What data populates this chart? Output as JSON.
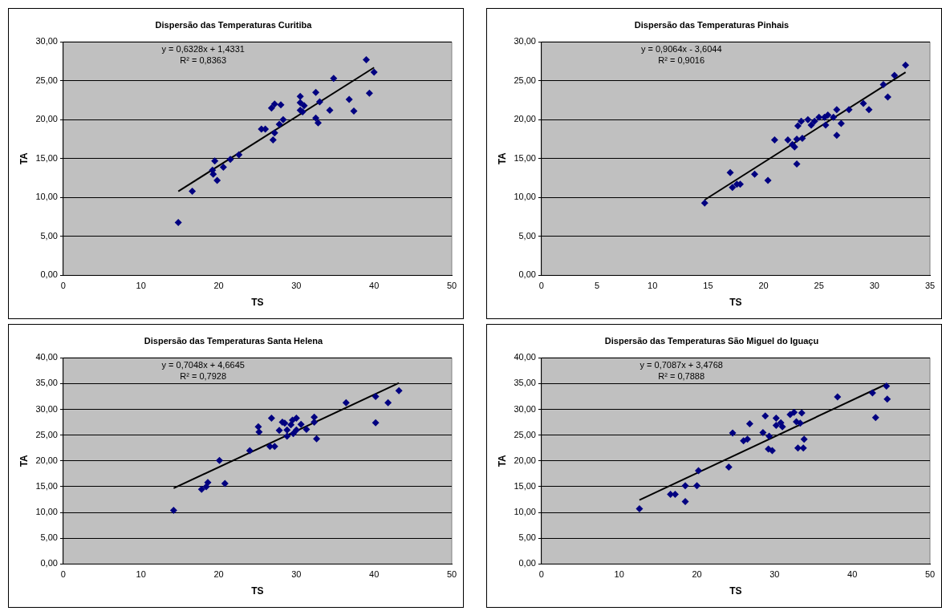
{
  "chart_data": [
    {
      "type": "scatter",
      "title": "Dispersão das Temperaturas Curitiba",
      "xlabel": "TS",
      "ylabel": "TA",
      "xlim": [
        0,
        50
      ],
      "xticks": [
        0,
        10,
        20,
        30,
        40,
        50
      ],
      "ylim": [
        0,
        30
      ],
      "yticks": [
        {
          "value": 0,
          "label": "0,00"
        },
        {
          "value": 5,
          "label": "5,00"
        },
        {
          "value": 10,
          "label": "10,00"
        },
        {
          "value": 15,
          "label": "15,00"
        },
        {
          "value": 20,
          "label": "20,00"
        },
        {
          "value": 25,
          "label": "25,00"
        },
        {
          "value": 30,
          "label": "30,00"
        }
      ],
      "grid": "y",
      "legend": false,
      "annotations": [
        "y = 0,6328x + 1,4331",
        "R² = 0,8363"
      ],
      "series": [
        {
          "color": "#000080",
          "marker": "diamond",
          "x": [
            14.8,
            16.6,
            19.2,
            19.5,
            19.3,
            19.8,
            20.6,
            21.5,
            22.6,
            25.5,
            26,
            26.8,
            27.2,
            27,
            27.2,
            28,
            27.8,
            28.3,
            30.5,
            30.5,
            30.5,
            31,
            30.8,
            32.5,
            32.5,
            32.8,
            33,
            34.3,
            34.8,
            36.8,
            37.4,
            39,
            39.4,
            40
          ],
          "values": [
            6.8,
            10.8,
            13.5,
            14.7,
            13,
            12.2,
            13.9,
            14.9,
            15.5,
            18.8,
            18.8,
            21.5,
            22,
            17.4,
            18.3,
            21.9,
            19.4,
            20,
            23,
            22.2,
            21.2,
            21.8,
            21,
            23.5,
            20.2,
            19.6,
            22.3,
            21.2,
            25.3,
            22.6,
            21.1,
            27.7,
            23.4,
            26.1
          ]
        },
        {
          "type": "line",
          "color": "#000000",
          "marker": "none",
          "x": [
            14.8,
            40
          ],
          "values": [
            10.8,
            26.7
          ]
        }
      ]
    },
    {
      "type": "scatter",
      "title": "Dispersão das Temperaturas Pinhais",
      "xlabel": "TS",
      "ylabel": "TA",
      "xlim": [
        0,
        35
      ],
      "xticks": [
        0,
        5,
        10,
        15,
        20,
        25,
        30,
        35
      ],
      "ylim": [
        0,
        30
      ],
      "yticks": [
        {
          "value": 0,
          "label": "0,00"
        },
        {
          "value": 5,
          "label": "5,00"
        },
        {
          "value": 10,
          "label": "10,00"
        },
        {
          "value": 15,
          "label": "15,00"
        },
        {
          "value": 20,
          "label": "20,00"
        },
        {
          "value": 25,
          "label": "25,00"
        },
        {
          "value": 30,
          "label": "30,00"
        }
      ],
      "grid": "y",
      "legend": false,
      "annotations": [
        "y = 0,9064x - 3,6044",
        "R² = 0,9016"
      ],
      "series": [
        {
          "color": "#000080",
          "marker": "diamond",
          "x": [
            14.7,
            17,
            17.2,
            17.6,
            17.9,
            19.2,
            20.4,
            21,
            22.2,
            22.6,
            22.8,
            23,
            23,
            23.1,
            23.4,
            23.5,
            24,
            24.3,
            24.6,
            25,
            25.5,
            25.6,
            25.8,
            26.3,
            26.6,
            26.6,
            27,
            27.7,
            29,
            29.5,
            30.8,
            31.2,
            31.8,
            32.8
          ],
          "values": [
            9.3,
            13.2,
            11.3,
            11.7,
            11.7,
            13,
            12.2,
            17.4,
            17.4,
            16.8,
            16.5,
            17.5,
            14.3,
            19.2,
            19.8,
            17.6,
            20,
            19.3,
            19.8,
            20.3,
            20.3,
            19.3,
            20.6,
            20.3,
            21.3,
            18,
            19.5,
            21.3,
            22.1,
            21.3,
            24.5,
            22.9,
            25.7,
            27
          ]
        },
        {
          "type": "line",
          "color": "#000000",
          "marker": "none",
          "x": [
            14.7,
            32.8
          ],
          "values": [
            9.7,
            26.1
          ]
        }
      ]
    },
    {
      "type": "scatter",
      "title": "Dispersão das Temperaturas Santa Helena",
      "xlabel": "TS",
      "ylabel": "TA",
      "xlim": [
        0,
        50
      ],
      "xticks": [
        0,
        10,
        20,
        30,
        40,
        50
      ],
      "ylim": [
        0,
        40
      ],
      "yticks": [
        {
          "value": 0,
          "label": "0,00"
        },
        {
          "value": 5,
          "label": "5,00"
        },
        {
          "value": 10,
          "label": "10,00"
        },
        {
          "value": 15,
          "label": "15,00"
        },
        {
          "value": 20,
          "label": "20,00"
        },
        {
          "value": 25,
          "label": "25,00"
        },
        {
          "value": 30,
          "label": "30,00"
        },
        {
          "value": 35,
          "label": "35,00"
        },
        {
          "value": 40,
          "label": "40,00"
        }
      ],
      "grid": "y",
      "legend": false,
      "annotations": [
        "y = 0,7048x + 4,6645",
        "R² = 0,7928"
      ],
      "series": [
        {
          "color": "#000080",
          "marker": "diamond",
          "x": [
            14.2,
            17.8,
            18.4,
            18.6,
            20.1,
            20.8,
            24,
            26.6,
            27.2,
            26.8,
            25.1,
            25.2,
            27.8,
            28.2,
            28.8,
            28.8,
            28.5,
            29.3,
            29.6,
            29.5,
            30,
            30,
            30.6,
            31.3,
            32.3,
            32.3,
            32.6,
            36.4,
            40.2,
            40.2,
            41.8,
            43.2
          ],
          "values": [
            10.4,
            14.5,
            15,
            15.8,
            20.1,
            15.6,
            22,
            22.8,
            22.8,
            28.3,
            26.6,
            25.6,
            25.9,
            27.5,
            24.8,
            26,
            27.3,
            27,
            25.3,
            27.9,
            28.3,
            26,
            27.1,
            26.1,
            28.5,
            27.5,
            24.3,
            31.3,
            32.5,
            27.4,
            31.3,
            33.6
          ]
        },
        {
          "type": "line",
          "color": "#000000",
          "marker": "none",
          "x": [
            14.2,
            43.2
          ],
          "values": [
            14.7,
            35.1
          ]
        }
      ]
    },
    {
      "type": "scatter",
      "title": "Dispersão das Temperaturas São Miguel do Iguaçu",
      "xlabel": "TS",
      "ylabel": "TA",
      "xlim": [
        0,
        50
      ],
      "xticks": [
        0,
        10,
        20,
        30,
        40,
        50
      ],
      "ylim": [
        0,
        40
      ],
      "yticks": [
        {
          "value": 0,
          "label": "0,00"
        },
        {
          "value": 5,
          "label": "5,00"
        },
        {
          "value": 10,
          "label": "10,00"
        },
        {
          "value": 15,
          "label": "15,00"
        },
        {
          "value": 20,
          "label": "20,00"
        },
        {
          "value": 25,
          "label": "25,00"
        },
        {
          "value": 30,
          "label": "30,00"
        },
        {
          "value": 35,
          "label": "35,00"
        },
        {
          "value": 40,
          "label": "40,00"
        }
      ],
      "grid": "y",
      "legend": false,
      "annotations": [
        "y = 0,7087x + 3,4768",
        "R² = 0,7888"
      ],
      "series": [
        {
          "color": "#000080",
          "marker": "diamond",
          "x": [
            12.6,
            16.6,
            17.2,
            18.5,
            18.5,
            20,
            20.2,
            24.1,
            24.6,
            26,
            26.5,
            26.8,
            28.5,
            28.8,
            29.2,
            29.7,
            29.3,
            30.2,
            30.2,
            30.8,
            31,
            32,
            32.5,
            32.8,
            33,
            33.3,
            33.5,
            33.8,
            33.7,
            38.1,
            42.6,
            43,
            44.4,
            44.5
          ],
          "values": [
            10.7,
            13.5,
            13.5,
            15.2,
            12.1,
            15.2,
            18.1,
            18.8,
            25.4,
            23.9,
            24.2,
            27.2,
            25.5,
            28.7,
            22.3,
            22,
            24.8,
            28.3,
            26.9,
            27.4,
            26.6,
            29,
            29.4,
            27.6,
            22.5,
            27.3,
            29.3,
            24.2,
            22.5,
            32.4,
            33.2,
            28.4,
            34.5,
            32
          ]
        },
        {
          "type": "line",
          "color": "#000000",
          "marker": "none",
          "x": [
            12.6,
            44.4
          ],
          "values": [
            12.4,
            34.9
          ]
        }
      ]
    }
  ]
}
